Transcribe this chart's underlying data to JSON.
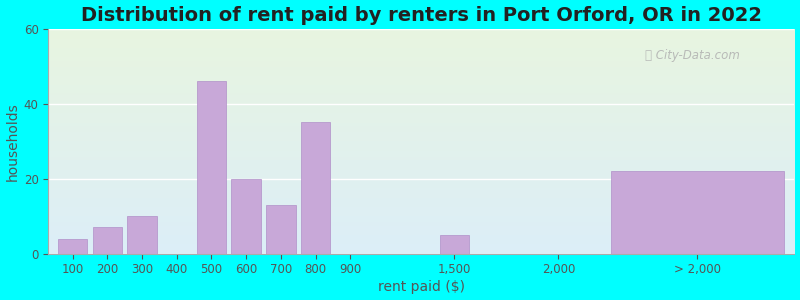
{
  "title": "Distribution of rent paid by renters in Port Orford, OR in 2022",
  "xlabel": "rent paid ($)",
  "ylabel": "households",
  "bar_color": "#c8a8d8",
  "bar_edgecolor": "#b090c8",
  "background_color": "#00ffff",
  "grad_top_color": "#e8f5e0",
  "grad_bottom_color": "#dceef8",
  "categories": [
    "100",
    "200",
    "300",
    "400",
    "500",
    "600",
    "700",
    "800",
    "900",
    "1,500",
    "2,000",
    "> 2,000"
  ],
  "values": [
    4,
    7,
    10,
    0,
    46,
    20,
    13,
    35,
    0,
    5,
    0,
    22
  ],
  "ylim": [
    0,
    60
  ],
  "yticks": [
    0,
    20,
    40,
    60
  ],
  "title_fontsize": 14,
  "axis_fontsize": 10,
  "tick_fontsize": 8.5
}
